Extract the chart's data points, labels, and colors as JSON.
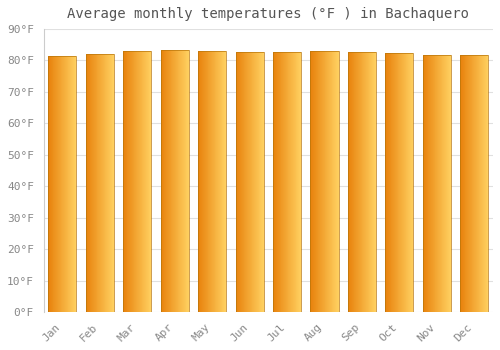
{
  "title": "Average monthly temperatures (°F ) in Bachaquero",
  "months": [
    "Jan",
    "Feb",
    "Mar",
    "Apr",
    "May",
    "Jun",
    "Jul",
    "Aug",
    "Sep",
    "Oct",
    "Nov",
    "Dec"
  ],
  "values": [
    81.5,
    82.2,
    82.9,
    83.3,
    83.1,
    82.6,
    82.8,
    82.9,
    82.8,
    82.5,
    81.8,
    81.7
  ],
  "bar_color_left": "#E8820C",
  "bar_color_right": "#FFD060",
  "ylim": [
    0,
    90
  ],
  "yticks": [
    0,
    10,
    20,
    30,
    40,
    50,
    60,
    70,
    80,
    90
  ],
  "ytick_labels": [
    "0°F",
    "10°F",
    "20°F",
    "30°F",
    "40°F",
    "50°F",
    "60°F",
    "70°F",
    "80°F",
    "90°F"
  ],
  "bg_color": "#ffffff",
  "grid_color": "#e0e0e0",
  "title_fontsize": 10,
  "tick_fontsize": 8,
  "font_family": "monospace",
  "bar_width": 0.75,
  "bar_edge_color": "#b8750a",
  "bar_edge_width": 0.5
}
